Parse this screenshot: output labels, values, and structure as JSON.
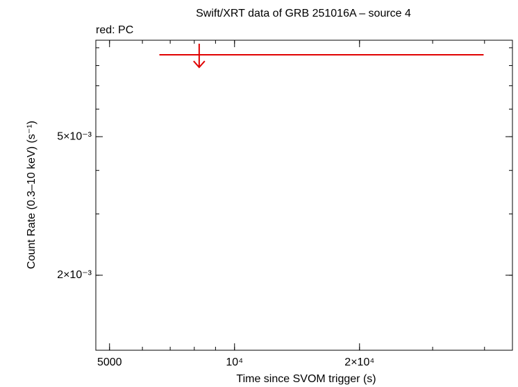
{
  "chart_data": {
    "type": "scatter",
    "title": "Swift/XRT data of GRB 251016A – source 4",
    "annotation": "red: PC",
    "x_label": "Time since SVOM trigger (s)",
    "y_label": "Count Rate (0.3–10 keV) (s⁻¹)",
    "log_x": true,
    "log_y": true,
    "xlim": [
      4634,
      46700
    ],
    "ylim": [
      0.001218,
      0.00946
    ],
    "xticks": [
      5000,
      {
        "value": 10000,
        "label": "10⁴"
      },
      {
        "value": 20000,
        "label": "2×10⁴"
      }
    ],
    "yticks": [
      {
        "value": 0.002,
        "label": "2×10⁻³"
      },
      {
        "value": 0.005,
        "label": "5×10⁻³"
      }
    ],
    "series": [
      {
        "name": "PC",
        "color": "#e00000",
        "upper_limit": true,
        "x": [
          8220
        ],
        "x_low": [
          6592
        ],
        "x_high": [
          39800
        ],
        "values": [
          0.00859
        ]
      }
    ]
  }
}
